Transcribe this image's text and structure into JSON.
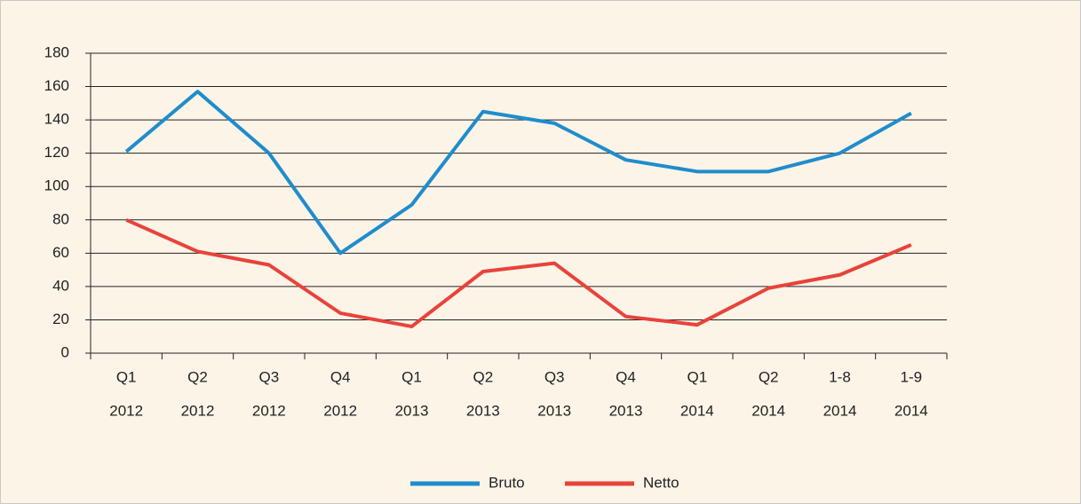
{
  "chart_data": {
    "type": "line",
    "categories": [
      [
        "Q1",
        "2012"
      ],
      [
        "Q2",
        "2012"
      ],
      [
        "Q3",
        "2012"
      ],
      [
        "Q4",
        "2012"
      ],
      [
        "Q1",
        "2013"
      ],
      [
        "Q2",
        "2013"
      ],
      [
        "Q3",
        "2013"
      ],
      [
        "Q4",
        "2013"
      ],
      [
        "Q1",
        "2014"
      ],
      [
        "Q2",
        "2014"
      ],
      [
        "1-8",
        "2014"
      ],
      [
        "1-9",
        "2014"
      ]
    ],
    "series": [
      {
        "name": "Bruto",
        "color": "#1f8dcc",
        "values": [
          121,
          157,
          120,
          60,
          89,
          145,
          138,
          116,
          109,
          109,
          120,
          144
        ]
      },
      {
        "name": "Netto",
        "color": "#e8433a",
        "values": [
          80,
          61,
          53,
          24,
          16,
          49,
          54,
          22,
          17,
          39,
          47,
          65
        ]
      }
    ],
    "ylim": [
      0,
      180
    ],
    "yticks": [
      0,
      20,
      40,
      60,
      80,
      100,
      120,
      140,
      160,
      180
    ],
    "grid": true,
    "legend": "bottom"
  }
}
